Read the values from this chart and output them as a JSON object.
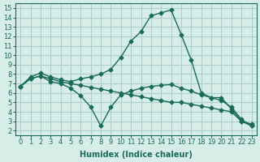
{
  "bg_color": "#d6ede8",
  "grid_color": "#b0cfc8",
  "line_color": "#1a6b5a",
  "xlabel": "Humidex (Indice chaleur)",
  "xlim": [
    -0.5,
    23.5
  ],
  "ylim": [
    1.5,
    15.5
  ],
  "xticks": [
    0,
    1,
    2,
    3,
    4,
    5,
    6,
    7,
    8,
    9,
    10,
    11,
    12,
    13,
    14,
    15,
    16,
    17,
    18,
    19,
    20,
    21,
    22,
    23
  ],
  "yticks": [
    2,
    3,
    4,
    5,
    6,
    7,
    8,
    9,
    10,
    11,
    12,
    13,
    14,
    15
  ],
  "line1_x": [
    0,
    1,
    2,
    3,
    4,
    5,
    6,
    7,
    8,
    9,
    10,
    11,
    12,
    13,
    14,
    15,
    16,
    17,
    18,
    19,
    20,
    21,
    22,
    23
  ],
  "line1_y": [
    6.7,
    7.7,
    8.1,
    7.7,
    7.4,
    7.2,
    7.5,
    7.7,
    8.0,
    8.5,
    9.8,
    11.5,
    12.5,
    14.2,
    14.5,
    14.8,
    12.2,
    9.5,
    6.0,
    5.5,
    5.5,
    4.3,
    3.0,
    2.5
  ],
  "line2_x": [
    0,
    1,
    2,
    3,
    4,
    5,
    6,
    7,
    8,
    9,
    10,
    11,
    12,
    13,
    14,
    15,
    16,
    17,
    18,
    19,
    20,
    21,
    22,
    23
  ],
  "line2_y": [
    6.7,
    7.5,
    7.8,
    7.5,
    7.2,
    7.0,
    6.8,
    6.6,
    6.4,
    6.2,
    6.0,
    5.8,
    5.6,
    5.4,
    5.2,
    5.0,
    5.0,
    4.8,
    4.6,
    4.4,
    4.2,
    4.0,
    3.0,
    2.7
  ],
  "line3_x": [
    0,
    1,
    2,
    3,
    4,
    5,
    6,
    7,
    8,
    9,
    10,
    11,
    12,
    13,
    14,
    15,
    16,
    17,
    18,
    19,
    20,
    21,
    22,
    23
  ],
  "line3_y": [
    6.7,
    7.5,
    7.8,
    7.2,
    7.0,
    6.5,
    5.7,
    4.5,
    2.5,
    4.5,
    5.8,
    6.2,
    6.5,
    6.7,
    6.8,
    6.9,
    6.5,
    6.2,
    5.8,
    5.5,
    5.2,
    4.5,
    3.2,
    2.5
  ]
}
